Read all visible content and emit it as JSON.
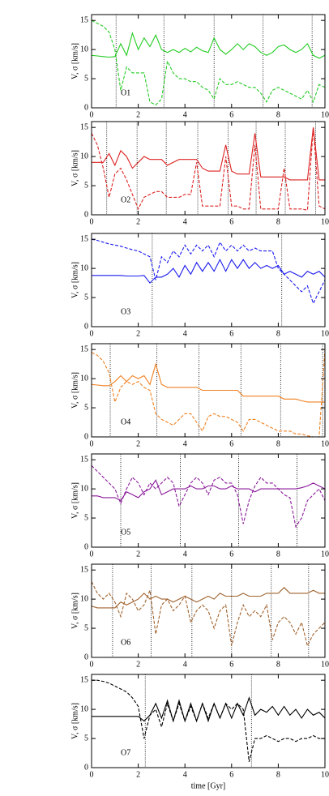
{
  "chart_data": [
    {
      "type": "line",
      "label": "O1",
      "ylabel": "V, σ [km/s]",
      "x": [
        0,
        0.25,
        0.5,
        0.75,
        1,
        1.25,
        1.5,
        1.75,
        2,
        2.25,
        2.5,
        2.75,
        3,
        3.25,
        3.5,
        3.75,
        4,
        4.25,
        4.5,
        4.75,
        5,
        5.25,
        5.5,
        5.75,
        6,
        6.25,
        6.5,
        6.75,
        7,
        7.25,
        7.5,
        7.75,
        8,
        8.25,
        8.5,
        8.75,
        9,
        9.25,
        9.5,
        9.75,
        10
      ],
      "series": [
        {
          "color": "#22cc22",
          "linestyle": "solid",
          "values": [
            9,
            8.9,
            8.8,
            8.7,
            8.8,
            11,
            9,
            12.8,
            10,
            12,
            10.5,
            12.5,
            10,
            9.5,
            10,
            9.5,
            10.2,
            9.6,
            10.4,
            9.8,
            9.5,
            12,
            10,
            9.2,
            10,
            11,
            10,
            11,
            10.5,
            9.5,
            9,
            9.5,
            10.5,
            10.8,
            10,
            9.5,
            10,
            11,
            9,
            8.5,
            9
          ]
        },
        {
          "color": "#22cc22",
          "linestyle": "dashed",
          "values": [
            15,
            14.5,
            14,
            13,
            10,
            3,
            7,
            6,
            6,
            6,
            1,
            0.5,
            1.5,
            8,
            6,
            5,
            5,
            4.5,
            4.5,
            3.5,
            3,
            1.5,
            5,
            4,
            4,
            4.5,
            4,
            3.5,
            3.5,
            2.5,
            1,
            3,
            3.5,
            3,
            2.5,
            2,
            1.5,
            3,
            1,
            4,
            3.5
          ]
        }
      ],
      "vlines": [
        1.05,
        3.1,
        5.25,
        7.35,
        9.45
      ],
      "xlim": [
        0,
        10
      ],
      "ylim": [
        0,
        16
      ],
      "xticks": [
        0,
        2,
        4,
        6,
        8,
        10
      ],
      "yticks": [
        0,
        5,
        10,
        15
      ]
    },
    {
      "type": "line",
      "label": "O2",
      "ylabel": "V, σ [km/s]",
      "x": [
        0,
        0.25,
        0.5,
        0.75,
        1,
        1.25,
        1.5,
        1.75,
        2,
        2.25,
        2.5,
        2.75,
        3,
        3.25,
        3.5,
        3.75,
        4,
        4.25,
        4.5,
        4.75,
        5,
        5.25,
        5.5,
        5.75,
        6,
        6.25,
        6.5,
        6.75,
        7,
        7.25,
        7.5,
        7.75,
        8,
        8.25,
        8.5,
        8.75,
        9,
        9.25,
        9.5,
        9.75,
        10
      ],
      "series": [
        {
          "color": "#dd2222",
          "linestyle": "solid",
          "values": [
            9,
            9,
            9,
            10.5,
            8.5,
            11,
            10,
            8,
            9,
            10,
            9.5,
            9.5,
            9.5,
            8.5,
            9,
            9.5,
            9.5,
            9.5,
            9.5,
            8,
            7.5,
            7.5,
            7.5,
            12,
            7.5,
            7,
            7,
            7,
            14,
            6.5,
            6.5,
            6.5,
            6.5,
            6.5,
            6,
            6,
            6,
            6,
            15,
            6,
            6
          ]
        },
        {
          "color": "#dd2222",
          "linestyle": "dashed",
          "values": [
            14,
            12,
            8,
            3,
            7,
            8,
            6,
            3.5,
            1,
            3,
            3.5,
            4,
            4,
            3,
            3,
            3,
            3.5,
            3.5,
            9,
            1.5,
            1.5,
            1.5,
            1.5,
            10,
            1.5,
            1.5,
            1,
            1,
            12,
            1,
            1,
            1,
            1,
            8,
            1,
            1,
            1,
            0.8,
            15,
            1.5,
            1
          ]
        }
      ],
      "vlines": [
        0.65,
        1.95,
        3.2,
        4.55,
        5.85,
        7.05,
        8.3,
        9.6
      ],
      "xlim": [
        0,
        10
      ],
      "ylim": [
        0,
        16
      ],
      "xticks": [
        0,
        2,
        4,
        6,
        8,
        10
      ],
      "yticks": [
        0,
        5,
        10,
        15
      ]
    },
    {
      "type": "line",
      "label": "O3",
      "ylabel": "V, σ [km/s]",
      "x": [
        0,
        0.25,
        0.5,
        0.75,
        1,
        1.25,
        1.5,
        1.75,
        2,
        2.25,
        2.5,
        2.75,
        3,
        3.25,
        3.5,
        3.75,
        4,
        4.25,
        4.5,
        4.75,
        5,
        5.25,
        5.5,
        5.75,
        6,
        6.25,
        6.5,
        6.75,
        7,
        7.25,
        7.5,
        7.75,
        8,
        8.25,
        8.5,
        8.75,
        9,
        9.25,
        9.5,
        9.75,
        10
      ],
      "series": [
        {
          "color": "#1a1aee",
          "linestyle": "solid",
          "values": [
            8.8,
            8.8,
            8.8,
            8.8,
            8.8,
            8.8,
            8.7,
            8.7,
            8.7,
            8.8,
            7.5,
            8.5,
            8.5,
            9,
            10,
            8.5,
            10.5,
            9,
            11,
            9.5,
            11,
            9.5,
            11.5,
            9.5,
            11.5,
            10,
            11.5,
            10,
            11,
            10,
            10.5,
            10,
            10.5,
            9,
            9.5,
            9,
            8.5,
            9.5,
            9,
            9.5,
            8.5
          ]
        },
        {
          "color": "#1a1aee",
          "linestyle": "dashed",
          "values": [
            15,
            14.8,
            14.5,
            14.2,
            14,
            13.8,
            13.5,
            13.2,
            13,
            12.5,
            12,
            8,
            12,
            11,
            13,
            12,
            14,
            12.5,
            14,
            13,
            14,
            12,
            14.5,
            13,
            14,
            13,
            14,
            13,
            13.5,
            13,
            13,
            13,
            10,
            9,
            8,
            7,
            6,
            7,
            4,
            6,
            8
          ]
        }
      ],
      "vlines": [
        2.6,
        8.15
      ],
      "xlim": [
        0,
        10
      ],
      "ylim": [
        0,
        16
      ],
      "xticks": [
        0,
        2,
        4,
        6,
        8,
        10
      ],
      "yticks": [
        0,
        5,
        10,
        15
      ]
    },
    {
      "type": "line",
      "label": "O4",
      "ylabel": "V, σ [km/s]",
      "x": [
        0,
        0.25,
        0.5,
        0.75,
        1,
        1.25,
        1.5,
        1.75,
        2,
        2.25,
        2.5,
        2.75,
        3,
        3.25,
        3.5,
        3.75,
        4,
        4.25,
        4.5,
        4.75,
        5,
        5.25,
        5.5,
        5.75,
        6,
        6.25,
        6.5,
        6.75,
        7,
        7.25,
        7.5,
        7.75,
        8,
        8.25,
        8.5,
        8.75,
        9,
        9.25,
        9.5,
        9.75,
        10
      ],
      "series": [
        {
          "color": "#f08020",
          "linestyle": "solid",
          "values": [
            9,
            8.9,
            8.8,
            8.8,
            9.5,
            10.5,
            9.5,
            10.5,
            10,
            10.5,
            9,
            12.5,
            9,
            8.5,
            8.5,
            8.5,
            8.5,
            8.5,
            8.5,
            8,
            8,
            8,
            8,
            8,
            8,
            8,
            7,
            7,
            7,
            7,
            7,
            7,
            7,
            6.5,
            6.5,
            6.5,
            6.2,
            6,
            6,
            6,
            6
          ]
        },
        {
          "color": "#f08020",
          "linestyle": "dashed",
          "values": [
            14.5,
            14,
            13,
            11,
            6,
            8.5,
            9.5,
            9,
            9.5,
            8.5,
            8,
            4,
            3,
            2.5,
            2,
            3,
            4,
            4,
            2.5,
            1,
            3.5,
            4,
            3.5,
            3.5,
            3,
            2.5,
            1,
            3,
            3,
            2.5,
            2,
            1.5,
            1,
            1,
            1,
            0.5,
            0.5,
            0.2,
            0,
            0,
            15
          ]
        }
      ],
      "vlines": [
        0.8,
        2.8,
        4.6,
        6.4,
        8.1,
        9.9
      ],
      "xlim": [
        0,
        10
      ],
      "ylim": [
        0,
        16
      ],
      "xticks": [
        0,
        2,
        4,
        6,
        8,
        10
      ],
      "yticks": [
        0,
        5,
        10,
        15
      ]
    },
    {
      "type": "line",
      "label": "O5",
      "ylabel": "V, σ [km/s]",
      "x": [
        0,
        0.25,
        0.5,
        0.75,
        1,
        1.25,
        1.5,
        1.75,
        2,
        2.25,
        2.5,
        2.75,
        3,
        3.25,
        3.5,
        3.75,
        4,
        4.25,
        4.5,
        4.75,
        5,
        5.25,
        5.5,
        5.75,
        6,
        6.25,
        6.5,
        6.75,
        7,
        7.25,
        7.5,
        7.75,
        8,
        8.25,
        8.5,
        8.75,
        9,
        9.25,
        9.5,
        9.75,
        10
      ],
      "series": [
        {
          "color": "#8a1a9a",
          "linestyle": "solid",
          "values": [
            8.8,
            8.8,
            8.5,
            8.5,
            8.5,
            8,
            9.5,
            9,
            8.5,
            9.5,
            10,
            11.5,
            9,
            9.5,
            10,
            10,
            10,
            10.5,
            10,
            10,
            10.5,
            10.5,
            10,
            10,
            10.5,
            10,
            10,
            10,
            9.5,
            10,
            10,
            10,
            10,
            10,
            10,
            10,
            10.2,
            10.5,
            11,
            10.5,
            10
          ]
        },
        {
          "color": "#8a1a9a",
          "linestyle": "dashed",
          "values": [
            14,
            13,
            12,
            11,
            10,
            7.5,
            10,
            12,
            11,
            9,
            11,
            10,
            11,
            12,
            11,
            7,
            9,
            11,
            12,
            11,
            9,
            11.5,
            12,
            11,
            11,
            9,
            4,
            8,
            10.5,
            12,
            11,
            11,
            10,
            9,
            8.5,
            3.5,
            5,
            8,
            9,
            10,
            8
          ]
        }
      ],
      "vlines": [
        1.25,
        3.8,
        6.3,
        8.8
      ],
      "xlim": [
        0,
        10
      ],
      "ylim": [
        0,
        16
      ],
      "xticks": [
        0,
        2,
        4,
        6,
        8,
        10
      ],
      "yticks": [
        0,
        5,
        10,
        15
      ]
    },
    {
      "type": "line",
      "label": "O6",
      "ylabel": "V, σ [km/s]",
      "x": [
        0,
        0.25,
        0.5,
        0.75,
        1,
        1.25,
        1.5,
        1.75,
        2,
        2.25,
        2.5,
        2.75,
        3,
        3.25,
        3.5,
        3.75,
        4,
        4.25,
        4.5,
        4.75,
        5,
        5.25,
        5.5,
        5.75,
        6,
        6.25,
        6.5,
        6.75,
        7,
        7.25,
        7.5,
        7.75,
        8,
        8.25,
        8.5,
        8.75,
        9,
        9.25,
        9.5,
        9.75,
        10
      ],
      "series": [
        {
          "color": "#a0622d",
          "linestyle": "solid",
          "values": [
            8.8,
            8.5,
            8.5,
            8.5,
            8.5,
            9.5,
            9,
            9.5,
            10,
            11,
            10,
            10.5,
            10,
            10,
            9.5,
            10,
            10.5,
            10,
            9.5,
            10,
            10.5,
            10,
            11,
            10.5,
            10.5,
            10.5,
            11,
            10.5,
            10.5,
            10.5,
            11,
            11,
            11,
            12,
            11,
            11,
            11,
            11,
            11.5,
            11,
            11
          ]
        },
        {
          "color": "#a0622d",
          "linestyle": "dashed",
          "values": [
            13,
            11,
            10,
            11,
            9.5,
            7,
            11,
            10,
            8,
            9,
            11.5,
            4,
            9,
            10,
            8,
            9,
            10.5,
            6,
            8,
            9,
            8,
            5,
            8,
            9,
            2,
            6,
            9,
            7,
            8,
            7,
            9,
            3,
            6,
            7,
            6,
            4,
            6,
            2,
            4,
            5,
            6
          ]
        }
      ],
      "vlines": [
        0.9,
        2.55,
        4.3,
        6,
        7.7,
        9.3
      ],
      "xlim": [
        0,
        10
      ],
      "ylim": [
        0,
        16
      ],
      "xticks": [
        0,
        2,
        4,
        6,
        8,
        10
      ],
      "yticks": [
        0,
        5,
        10,
        15
      ]
    },
    {
      "type": "line",
      "label": "O7",
      "ylabel": "V, σ [km/s]",
      "xlabel": "time [Gyr]",
      "x": [
        0,
        0.25,
        0.5,
        0.75,
        1,
        1.25,
        1.5,
        1.75,
        2,
        2.25,
        2.5,
        2.75,
        3,
        3.25,
        3.5,
        3.75,
        4,
        4.25,
        4.5,
        4.75,
        5,
        5.25,
        5.5,
        5.75,
        6,
        6.25,
        6.5,
        6.75,
        7,
        7.25,
        7.5,
        7.75,
        8,
        8.25,
        8.5,
        8.75,
        9,
        9.25,
        9.5,
        9.75,
        10
      ],
      "series": [
        {
          "color": "#000000",
          "linestyle": "solid",
          "values": [
            8.8,
            8.8,
            8.8,
            8.8,
            8.8,
            8.8,
            8.8,
            8.8,
            8.8,
            8,
            9,
            11,
            8.5,
            11.5,
            8,
            11.5,
            8,
            11,
            8,
            11,
            8,
            11,
            8.5,
            11,
            8.5,
            11,
            9,
            12,
            9,
            10,
            9.5,
            10.5,
            9,
            10.5,
            9,
            10,
            8.5,
            10,
            9,
            9.5,
            8.5
          ]
        },
        {
          "color": "#000000",
          "linestyle": "dashed",
          "values": [
            15,
            15,
            14.8,
            14.5,
            14,
            13.5,
            13,
            12,
            10.5,
            5,
            9,
            10,
            7,
            11,
            8,
            11,
            8,
            10.5,
            8,
            11,
            8.5,
            11,
            8.5,
            11,
            10,
            11,
            10,
            1,
            5,
            5,
            5.5,
            5,
            4.5,
            5,
            5,
            4.5,
            5,
            5,
            5.5,
            5,
            5
          ]
        }
      ],
      "vlines": [
        2.3,
        6.85
      ],
      "xlim": [
        0,
        10
      ],
      "ylim": [
        0,
        16
      ],
      "xticks": [
        0,
        2,
        4,
        6,
        8,
        10
      ],
      "yticks": [
        0,
        5,
        10,
        15
      ]
    }
  ]
}
